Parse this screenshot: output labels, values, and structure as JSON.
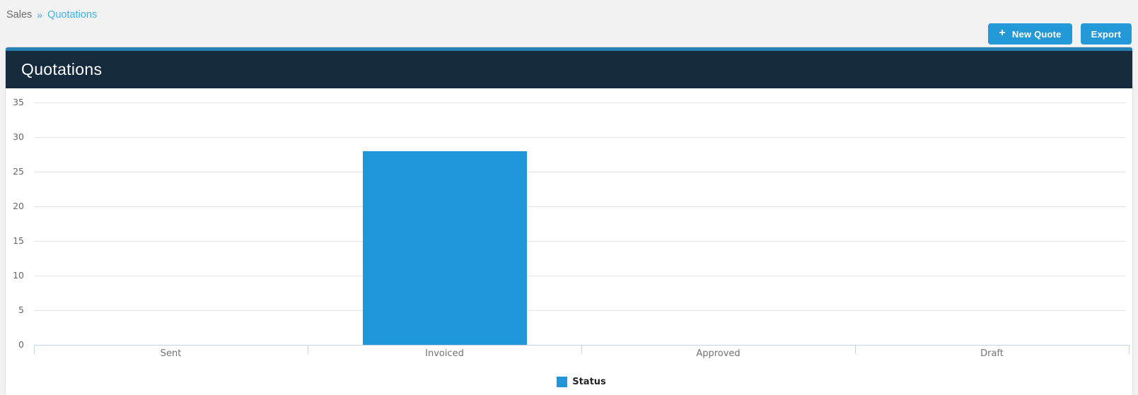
{
  "breadcrumb": {
    "section": "Sales",
    "separator": "»",
    "current": "Quotations"
  },
  "toolbar": {
    "new_quote": {
      "icon": "plus-icon",
      "glyph": "+",
      "label": "New Quote"
    },
    "export": {
      "label": "Export"
    }
  },
  "panel": {
    "title": "Quotations"
  },
  "chart_data": {
    "type": "bar",
    "title": "",
    "categories": [
      "Sent",
      "Invoiced",
      "Approved",
      "Draft"
    ],
    "series": [
      {
        "name": "Status",
        "color": "#2095d8",
        "values": [
          0,
          28,
          0,
          0
        ]
      }
    ],
    "ylim": [
      0,
      35
    ],
    "yticks": [
      0,
      5,
      10,
      15,
      20,
      25,
      30,
      35
    ],
    "grid": true,
    "legend": {
      "label": "Status",
      "position": "bottom-center"
    }
  },
  "colors": {
    "accent_button_blue": "#2499d8",
    "bar_blue": "#2095d8",
    "breadcrumb_link": "#41b1e3",
    "panel_header_bg": "#162a3e",
    "panel_top_strip": "#2580b6",
    "gridline": "#e3e3e3",
    "axis_line": "#c3d3e2",
    "page_bg": "#f2f2f2"
  }
}
